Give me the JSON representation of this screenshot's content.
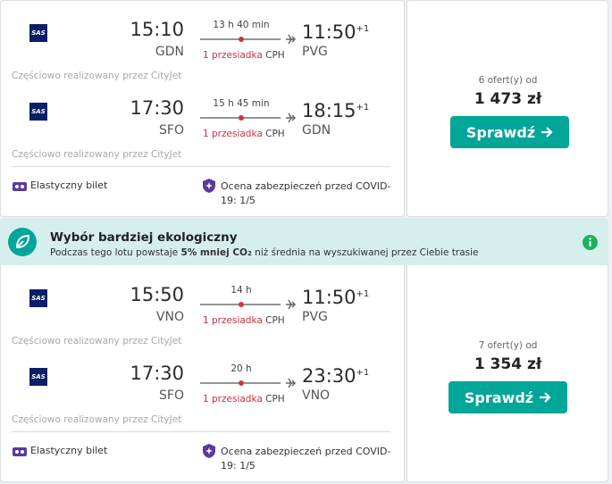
{
  "results": [
    {
      "flights": [
        {
          "airline_logo": "SAS",
          "depart_time": "15:10",
          "depart_code": "GDN",
          "duration": "13 h 40 min",
          "stops": "1 przesiadka",
          "stop_code": "CPH",
          "arrive_time": "11:50",
          "day_offset": "+1",
          "arrive_code": "PVG",
          "operated_by": "Częściowo realizowany przez CityJet"
        },
        {
          "airline_logo": "SAS",
          "depart_time": "17:30",
          "depart_code": "SFO",
          "duration": "15 h 45 min",
          "stops": "1 przesiadka",
          "stop_code": "CPH",
          "arrive_time": "18:15",
          "day_offset": "+1",
          "arrive_code": "GDN",
          "operated_by": "Częściowo realizowany przez CityJet"
        }
      ],
      "flexible": "Elastyczny bilet",
      "covid": "Ocena zabezpieczeń przed COVID-19: 1/5",
      "offers": "6 ofert(y) od",
      "price": "1 473 zł",
      "button": "Sprawdź"
    },
    {
      "flights": [
        {
          "airline_logo": "SAS",
          "depart_time": "15:50",
          "depart_code": "VNO",
          "duration": "14 h",
          "stops": "1 przesiadka",
          "stop_code": "CPH",
          "arrive_time": "11:50",
          "day_offset": "+1",
          "arrive_code": "PVG",
          "operated_by": "Częściowo realizowany przez CityJet"
        },
        {
          "airline_logo": "SAS",
          "depart_time": "17:30",
          "depart_code": "SFO",
          "duration": "20 h",
          "stops": "1 przesiadka",
          "stop_code": "CPH",
          "arrive_time": "23:30",
          "day_offset": "+1",
          "arrive_code": "VNO",
          "operated_by": "Częściowo realizowany przez CityJet"
        }
      ],
      "flexible": "Elastyczny bilet",
      "covid": "Ocena zabezpieczeń przed COVID-19: 1/5",
      "offers": "7 ofert(y) od",
      "price": "1 354 zł",
      "button": "Sprawdź"
    }
  ],
  "eco_banner": {
    "title": "Wybór bardziej ekologiczny",
    "text_before": "Podczas tego lotu powstaje ",
    "highlight": "5% mniej CO",
    "subscript": "2",
    "text_after": " niż średnia na wyszukiwanej przez Ciebie trasie"
  }
}
